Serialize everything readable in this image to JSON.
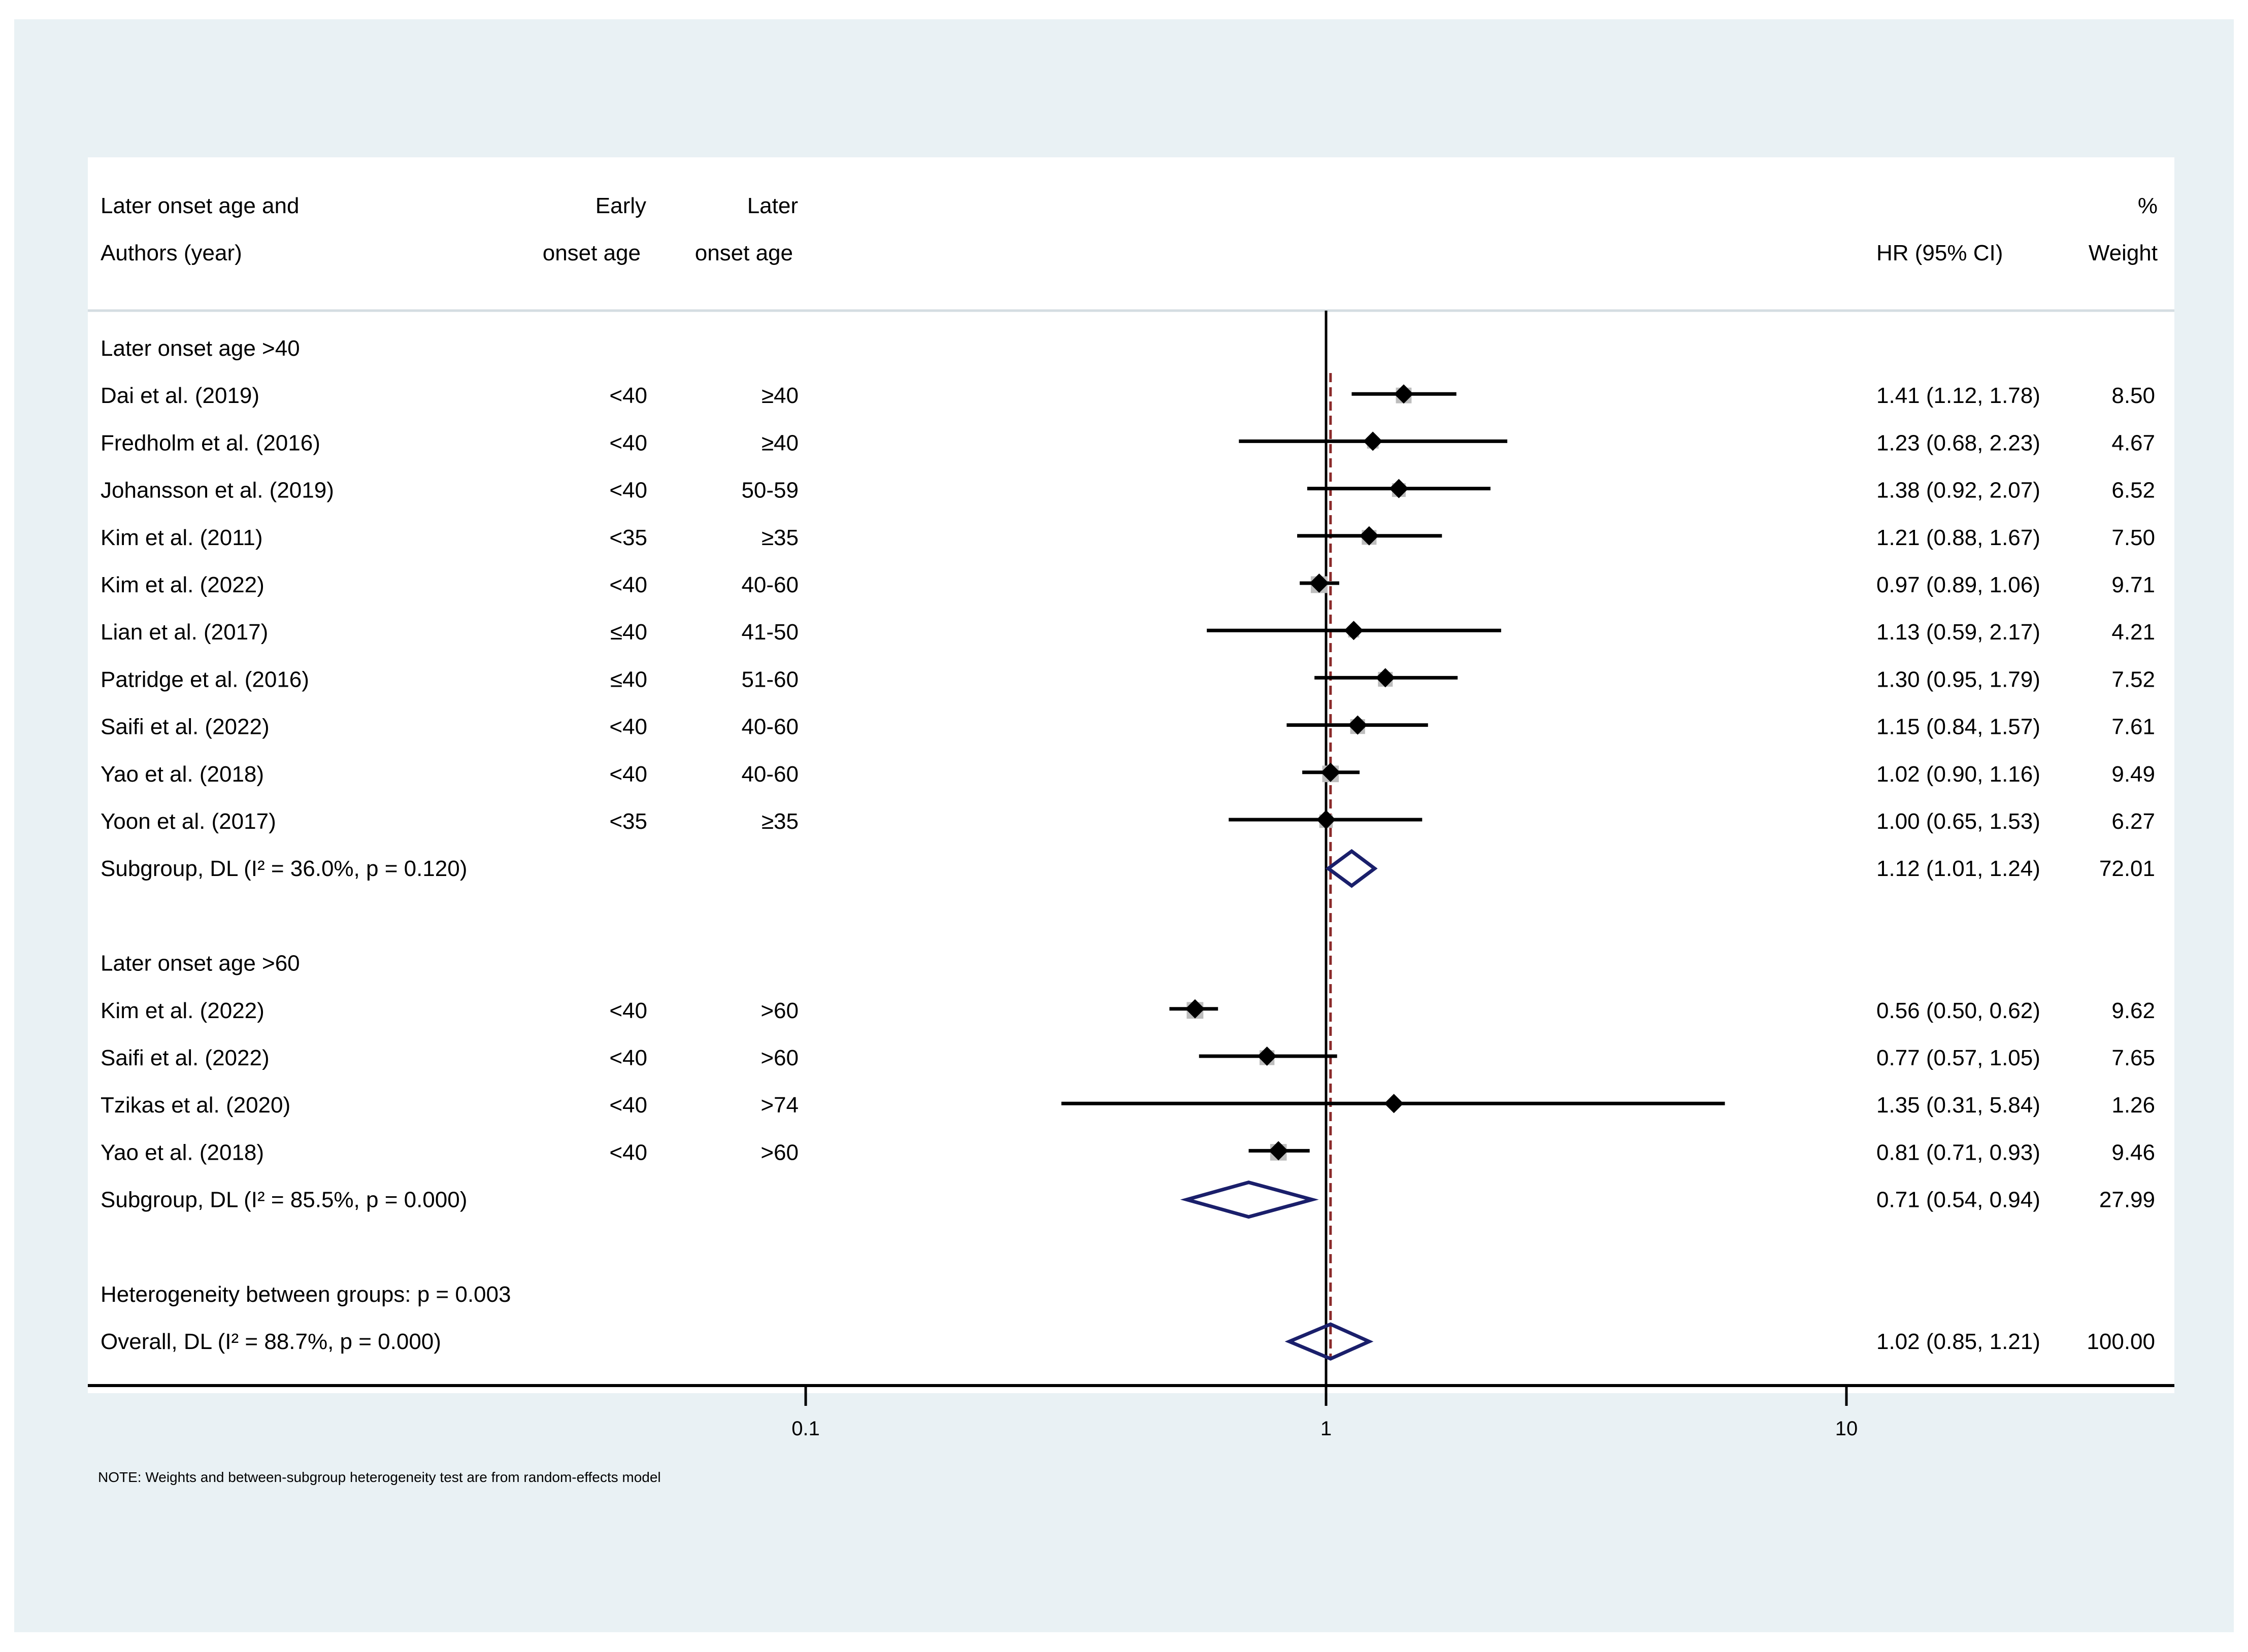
{
  "chart_data": {
    "type": "forest",
    "x_scale": "log",
    "x_ticks": [
      0.1,
      1,
      10
    ],
    "x_tick_labels": [
      "0.1",
      "1",
      "10"
    ],
    "reference_line": 1,
    "overall_estimate_line": 1.02,
    "headers": {
      "col1_line1": "Later onset age and",
      "col1_line2": "Authors (year)",
      "col2_line1": "Early",
      "col2_line2": "onset age",
      "col3_line1": "Later",
      "col3_line2": "onset age",
      "col4_line2": "HR (95% CI)",
      "col5_line1": "%",
      "col5_line2": "Weight"
    },
    "rows": [
      {
        "kind": "group",
        "label": "Later onset age >40"
      },
      {
        "kind": "study",
        "label": "Dai et al. (2019)",
        "early": "<40",
        "later": "≥40",
        "hr": 1.41,
        "lo": 1.12,
        "hi": 1.78,
        "ci_text": "1.41 (1.12, 1.78)",
        "weight": 8.5,
        "weight_text": "8.50"
      },
      {
        "kind": "study",
        "label": "Fredholm et al. (2016)",
        "early": "<40",
        "later": "≥40",
        "hr": 1.23,
        "lo": 0.68,
        "hi": 2.23,
        "ci_text": "1.23 (0.68, 2.23)",
        "weight": 4.67,
        "weight_text": "4.67"
      },
      {
        "kind": "study",
        "label": "Johansson et al. (2019)",
        "early": "<40",
        "later": "50-59",
        "hr": 1.38,
        "lo": 0.92,
        "hi": 2.07,
        "ci_text": "1.38 (0.92, 2.07)",
        "weight": 6.52,
        "weight_text": "6.52"
      },
      {
        "kind": "study",
        "label": "Kim et al. (2011)",
        "early": "<35",
        "later": "≥35",
        "hr": 1.21,
        "lo": 0.88,
        "hi": 1.67,
        "ci_text": "1.21 (0.88, 1.67)",
        "weight": 7.5,
        "weight_text": "7.50"
      },
      {
        "kind": "study",
        "label": "Kim et al. (2022)",
        "early": "<40",
        "later": "40-60",
        "hr": 0.97,
        "lo": 0.89,
        "hi": 1.06,
        "ci_text": "0.97 (0.89, 1.06)",
        "weight": 9.71,
        "weight_text": "9.71"
      },
      {
        "kind": "study",
        "label": "Lian et al. (2017)",
        "early": "≤40",
        "later": "41-50",
        "hr": 1.13,
        "lo": 0.59,
        "hi": 2.17,
        "ci_text": "1.13 (0.59, 2.17)",
        "weight": 4.21,
        "weight_text": "4.21"
      },
      {
        "kind": "study",
        "label": "Patridge et al. (2016)",
        "early": "≤40",
        "later": "51-60",
        "hr": 1.3,
        "lo": 0.95,
        "hi": 1.79,
        "ci_text": "1.30 (0.95, 1.79)",
        "weight": 7.52,
        "weight_text": "7.52"
      },
      {
        "kind": "study",
        "label": "Saifi et al. (2022)",
        "early": "<40",
        "later": "40-60",
        "hr": 1.15,
        "lo": 0.84,
        "hi": 1.57,
        "ci_text": "1.15 (0.84, 1.57)",
        "weight": 7.61,
        "weight_text": "7.61"
      },
      {
        "kind": "study",
        "label": "Yao et al. (2018)",
        "early": "<40",
        "later": "40-60",
        "hr": 1.02,
        "lo": 0.9,
        "hi": 1.16,
        "ci_text": "1.02 (0.90, 1.16)",
        "weight": 9.49,
        "weight_text": "9.49"
      },
      {
        "kind": "study",
        "label": "Yoon et al. (2017)",
        "early": "<35",
        "later": "≥35",
        "hr": 1.0,
        "lo": 0.65,
        "hi": 1.53,
        "ci_text": "1.00 (0.65, 1.53)",
        "weight": 6.27,
        "weight_text": "6.27"
      },
      {
        "kind": "subgroup",
        "label": "Subgroup, DL (I² = 36.0%, p = 0.120)",
        "hr": 1.12,
        "lo": 1.01,
        "hi": 1.24,
        "ci_text": "1.12 (1.01, 1.24)",
        "weight_text": "72.01"
      },
      {
        "kind": "blank"
      },
      {
        "kind": "group",
        "label": "Later onset age >60"
      },
      {
        "kind": "study",
        "label": "Kim et al. (2022)",
        "early": "<40",
        "later": ">60",
        "hr": 0.56,
        "lo": 0.5,
        "hi": 0.62,
        "ci_text": "0.56 (0.50, 0.62)",
        "weight": 9.62,
        "weight_text": "9.62"
      },
      {
        "kind": "study",
        "label": "Saifi et al. (2022)",
        "early": "<40",
        "later": ">60",
        "hr": 0.77,
        "lo": 0.57,
        "hi": 1.05,
        "ci_text": "0.77 (0.57, 1.05)",
        "weight": 7.65,
        "weight_text": "7.65"
      },
      {
        "kind": "study",
        "label": "Tzikas et al. (2020)",
        "early": "<40",
        "later": ">74",
        "hr": 1.35,
        "lo": 0.31,
        "hi": 5.84,
        "ci_text": "1.35 (0.31, 5.84)",
        "weight": 1.26,
        "weight_text": "1.26"
      },
      {
        "kind": "study",
        "label": "Yao et al. (2018)",
        "early": "<40",
        "later": ">60",
        "hr": 0.81,
        "lo": 0.71,
        "hi": 0.93,
        "ci_text": "0.81 (0.71, 0.93)",
        "weight": 9.46,
        "weight_text": "9.46"
      },
      {
        "kind": "subgroup",
        "label": "Subgroup, DL (I² = 85.5%, p = 0.000)",
        "hr": 0.71,
        "lo": 0.54,
        "hi": 0.94,
        "ci_text": "0.71 (0.54, 0.94)",
        "weight_text": "27.99"
      },
      {
        "kind": "blank"
      },
      {
        "kind": "text",
        "label": "Heterogeneity between groups: p = 0.003"
      },
      {
        "kind": "overall",
        "label": "Overall, DL (I² = 88.7%, p = 0.000)",
        "hr": 1.02,
        "lo": 0.85,
        "hi": 1.21,
        "ci_text": "1.02 (0.85, 1.21)",
        "weight_text": "100.00"
      }
    ],
    "note": "NOTE: Weights and between-subgroup heterogeneity test are from random-effects model"
  },
  "colors": {
    "outer_background": "#e9f1f4",
    "panel_background": "#ffffff",
    "axis": "#000000",
    "weight_box": "#bdbdbd",
    "point": "#000000",
    "diamond_stroke": "#1a1f6b",
    "overall_line": "#8b2a2a",
    "header_rule": "#d4dde2"
  }
}
